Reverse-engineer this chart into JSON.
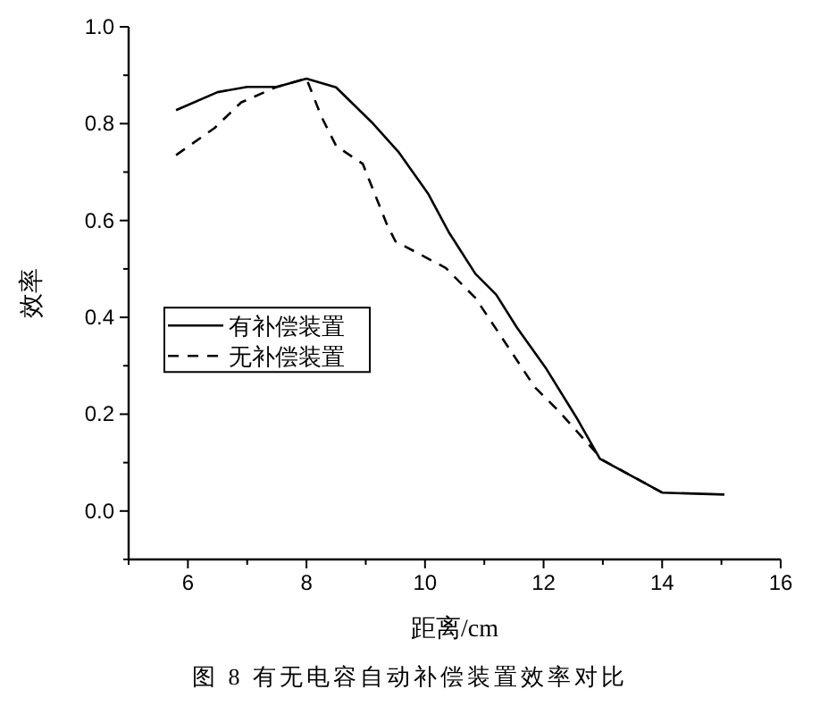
{
  "chart_data": {
    "type": "line",
    "xlabel": "距离/cm",
    "ylabel": "效率",
    "annotations": [
      "图 8  有无电容自动补偿装置效率对比"
    ],
    "xlim": [
      5,
      16
    ],
    "xticks": [
      {
        "value": 5,
        "label": null
      },
      6,
      {
        "value": 7,
        "label": null
      },
      8,
      {
        "value": 9,
        "label": null
      },
      10,
      {
        "value": 11,
        "label": null
      },
      12,
      {
        "value": 13,
        "label": null
      },
      14,
      {
        "value": 15,
        "label": null
      },
      16
    ],
    "ylim": [
      -0.1,
      1.0
    ],
    "yticks": [
      {
        "value": -0.1,
        "label": null
      },
      {
        "value": 0,
        "label": "0.0"
      },
      {
        "value": 0.1,
        "label": null
      },
      0.2,
      {
        "value": 0.3,
        "label": null
      },
      0.4,
      {
        "value": 0.5,
        "label": null
      },
      0.6,
      {
        "value": 0.7,
        "label": null
      },
      0.8,
      {
        "value": 0.9,
        "label": null
      },
      {
        "value": 1,
        "label": "1.0"
      }
    ],
    "legend": "left",
    "grid": false,
    "marker": "none",
    "series": [
      {
        "name": "有补偿装置",
        "color": "#000000",
        "line_style": "solid",
        "x": [
          5.8,
          6.5,
          7.0,
          7.5,
          8.0,
          8.5,
          9.1,
          9.55,
          10.05,
          10.4,
          10.85,
          11.2,
          11.55,
          12.05,
          12.55,
          12.95,
          14.0,
          15.05
        ],
        "values": [
          0.828,
          0.865,
          0.876,
          0.876,
          0.893,
          0.875,
          0.803,
          0.742,
          0.656,
          0.576,
          0.49,
          0.447,
          0.379,
          0.293,
          0.194,
          0.108,
          0.038,
          0.034
        ]
      },
      {
        "name": "无补偿装置",
        "color": "#000000",
        "line_style": "dashed",
        "x": [
          5.8,
          6.45,
          6.9,
          7.5,
          8.0,
          8.25,
          8.5,
          8.95,
          9.35,
          9.5,
          10.35,
          10.85,
          11.45,
          11.85,
          12.25,
          13.0,
          14.0
        ],
        "values": [
          0.735,
          0.791,
          0.844,
          0.876,
          0.893,
          0.815,
          0.754,
          0.717,
          0.594,
          0.557,
          0.502,
          0.44,
          0.33,
          0.256,
          0.207,
          0.105,
          0.038
        ]
      }
    ]
  }
}
